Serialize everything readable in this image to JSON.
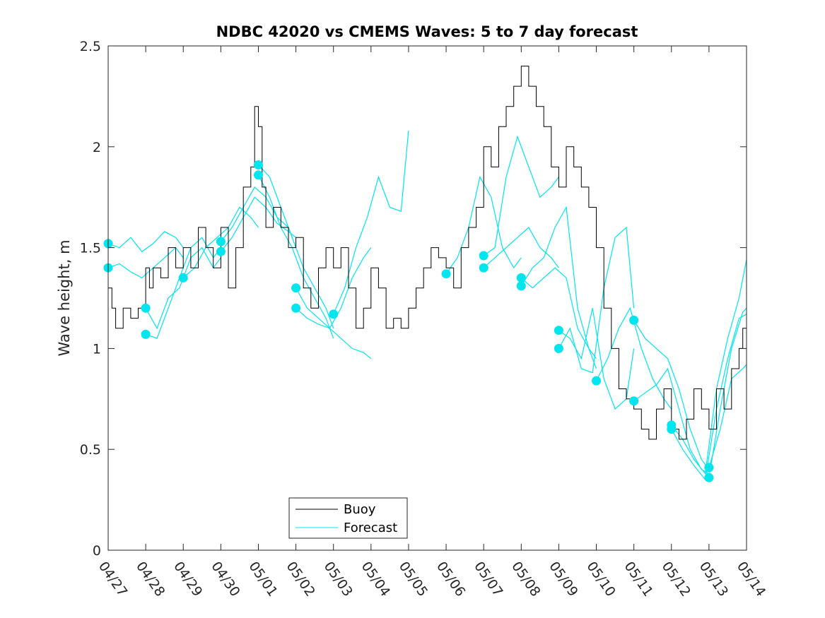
{
  "chart_data": {
    "type": "line",
    "title": "NDBC 42020 vs CMEMS Waves: 5 to 7 day forecast",
    "ylabel": "Wave height, m",
    "xlabel": "",
    "xlim": [
      0,
      17
    ],
    "ylim": [
      0,
      2.5
    ],
    "x_tick_labels": [
      "04/27",
      "04/28",
      "04/29",
      "04/30",
      "05/01",
      "05/02",
      "05/03",
      "05/04",
      "05/05",
      "05/06",
      "05/07",
      "05/08",
      "05/09",
      "05/10",
      "05/11",
      "05/12",
      "05/13",
      "05/14"
    ],
    "y_ticks": [
      0,
      0.5,
      1,
      1.5,
      2,
      2.5
    ],
    "y_tick_labels": [
      "0",
      "0.5",
      "1",
      "1.5",
      "2",
      "2.5"
    ],
    "grid": false,
    "legend_position": "bottom-center",
    "legend": [
      "Buoy",
      "Forecast"
    ],
    "colors": {
      "buoy": "#000000",
      "forecast": "#00e5ee"
    },
    "buoy": {
      "name": "Buoy",
      "x": [
        0,
        0.1,
        0.2,
        0.4,
        0.6,
        0.8,
        1.0,
        1.1,
        1.2,
        1.4,
        1.6,
        1.8,
        2.0,
        2.2,
        2.4,
        2.6,
        2.8,
        3.0,
        3.2,
        3.4,
        3.6,
        3.8,
        3.9,
        4.0,
        4.1,
        4.2,
        4.4,
        4.6,
        4.8,
        5.0,
        5.2,
        5.4,
        5.6,
        5.8,
        6.0,
        6.2,
        6.4,
        6.6,
        6.8,
        7.0,
        7.2,
        7.4,
        7.6,
        7.8,
        8.0,
        8.2,
        8.4,
        8.6,
        8.8,
        9.0,
        9.2,
        9.4,
        9.6,
        9.8,
        10.0,
        10.2,
        10.4,
        10.6,
        10.8,
        11.0,
        11.2,
        11.4,
        11.6,
        11.8,
        12.0,
        12.2,
        12.4,
        12.6,
        12.8,
        13.0,
        13.2,
        13.4,
        13.6,
        13.8,
        14.0,
        14.2,
        14.4,
        14.6,
        14.8,
        15.0,
        15.2,
        15.4,
        15.6,
        15.8,
        16.0,
        16.2,
        16.4,
        16.6,
        16.8,
        16.9,
        17.0
      ],
      "y": [
        1.3,
        1.2,
        1.1,
        1.2,
        1.15,
        1.2,
        1.4,
        1.3,
        1.4,
        1.35,
        1.5,
        1.4,
        1.5,
        1.4,
        1.6,
        1.5,
        1.4,
        1.6,
        1.3,
        1.5,
        1.8,
        1.9,
        2.2,
        2.1,
        1.8,
        1.6,
        1.7,
        1.6,
        1.5,
        1.55,
        1.3,
        1.2,
        1.4,
        1.5,
        1.4,
        1.5,
        1.3,
        1.1,
        1.2,
        1.4,
        1.3,
        1.1,
        1.15,
        1.1,
        1.2,
        1.3,
        1.4,
        1.5,
        1.45,
        1.4,
        1.3,
        1.5,
        1.6,
        1.7,
        2.0,
        1.9,
        2.1,
        2.2,
        2.3,
        2.4,
        2.3,
        2.2,
        2.1,
        1.9,
        1.8,
        2.0,
        1.9,
        1.8,
        1.7,
        1.5,
        1.2,
        1.0,
        0.8,
        0.75,
        0.7,
        0.6,
        0.55,
        0.7,
        0.8,
        0.6,
        0.55,
        0.65,
        0.8,
        0.7,
        0.6,
        0.8,
        0.7,
        0.9,
        1.0,
        1.1,
        1.2
      ]
    },
    "forecast": {
      "name": "Forecast",
      "segments": [
        {
          "x": [
            0,
            0.3,
            0.6,
            0.9,
            1.2,
            1.5,
            1.8,
            2.0
          ],
          "y": [
            1.52,
            1.5,
            1.55,
            1.48,
            1.52,
            1.58,
            1.55,
            1.5
          ]
        },
        {
          "x": [
            0,
            0.3,
            0.6,
            0.9,
            1.2,
            1.5,
            1.8,
            2.0
          ],
          "y": [
            1.4,
            1.42,
            1.38,
            1.35,
            1.4,
            1.45,
            1.5,
            1.45
          ]
        },
        {
          "x": [
            1,
            1.3,
            1.6,
            1.9,
            2.2,
            2.5,
            2.8,
            3.0
          ],
          "y": [
            1.2,
            1.1,
            1.25,
            1.3,
            1.45,
            1.5,
            1.4,
            1.45
          ]
        },
        {
          "x": [
            1,
            1.3,
            1.6,
            1.9,
            2.2,
            2.5,
            2.8,
            3.0
          ],
          "y": [
            1.07,
            1.05,
            1.2,
            1.35,
            1.5,
            1.55,
            1.45,
            1.5
          ]
        },
        {
          "x": [
            2,
            2.3,
            2.6,
            2.9,
            3.2,
            3.5,
            3.8,
            4.0
          ],
          "y": [
            1.35,
            1.4,
            1.5,
            1.55,
            1.6,
            1.7,
            1.65,
            1.6
          ]
        },
        {
          "x": [
            3,
            3.3,
            3.6,
            3.9,
            4.2,
            4.5,
            4.8,
            5.0
          ],
          "y": [
            1.48,
            1.55,
            1.65,
            1.75,
            1.7,
            1.62,
            1.58,
            1.55
          ]
        },
        {
          "x": [
            3,
            3.3,
            3.6,
            3.9,
            4.2,
            4.5,
            4.8,
            5.0
          ],
          "y": [
            1.53,
            1.6,
            1.7,
            1.8,
            1.75,
            1.65,
            1.6,
            1.5
          ]
        },
        {
          "x": [
            4,
            4.3,
            4.6,
            4.9,
            5.2,
            5.5,
            5.8,
            6.0
          ],
          "y": [
            1.91,
            1.85,
            1.7,
            1.55,
            1.4,
            1.3,
            1.2,
            1.1
          ]
        },
        {
          "x": [
            4,
            4.3,
            4.6,
            4.9,
            5.2,
            5.5,
            5.8,
            6.0
          ],
          "y": [
            1.86,
            1.75,
            1.6,
            1.5,
            1.35,
            1.25,
            1.15,
            1.05
          ]
        },
        {
          "x": [
            5,
            5.3,
            5.6,
            5.9,
            6.2,
            6.5,
            6.8,
            7.0
          ],
          "y": [
            1.3,
            1.2,
            1.15,
            1.1,
            1.05,
            1.0,
            0.98,
            0.95
          ]
        },
        {
          "x": [
            5,
            5.3,
            5.6,
            5.9,
            6.2,
            6.5,
            6.8,
            7.0
          ],
          "y": [
            1.2,
            1.15,
            1.12,
            1.1,
            1.2,
            1.35,
            1.45,
            1.5
          ]
        },
        {
          "x": [
            6,
            6.3,
            6.6,
            6.9,
            7.2,
            7.5,
            7.8,
            8.0
          ],
          "y": [
            1.17,
            1.3,
            1.5,
            1.65,
            1.85,
            1.7,
            1.68,
            2.08
          ]
        },
        {
          "x": [
            9,
            9.3,
            9.6,
            9.9,
            10.2,
            10.5,
            10.8,
            11.0
          ],
          "y": [
            1.37,
            1.45,
            1.6,
            1.85,
            1.75,
            1.5,
            1.4,
            1.45
          ]
        },
        {
          "x": [
            10,
            10.3,
            10.6,
            10.9,
            11.2,
            11.5,
            11.8,
            12.0
          ],
          "y": [
            1.46,
            1.5,
            1.85,
            2.05,
            1.9,
            1.75,
            1.8,
            1.85
          ]
        },
        {
          "x": [
            10,
            10.3,
            10.6,
            10.9,
            11.2,
            11.5,
            11.8,
            12.0
          ],
          "y": [
            1.4,
            1.45,
            1.5,
            1.55,
            1.6,
            1.5,
            1.45,
            1.4
          ]
        },
        {
          "x": [
            11,
            11.3,
            11.6,
            11.9,
            12.2,
            12.5,
            12.8,
            13.0
          ],
          "y": [
            1.35,
            1.3,
            1.35,
            1.4,
            1.35,
            1.1,
            1.0,
            0.95
          ]
        },
        {
          "x": [
            11,
            11.3,
            11.6,
            11.9,
            12.2,
            12.5,
            12.8,
            13.0
          ],
          "y": [
            1.31,
            1.4,
            1.45,
            1.6,
            1.7,
            1.2,
            1.0,
            0.9
          ]
        },
        {
          "x": [
            12,
            12.3,
            12.6,
            12.9,
            13.2,
            13.5,
            13.8,
            14.0
          ],
          "y": [
            1.09,
            1.05,
            0.95,
            1.2,
            0.85,
            0.7,
            0.75,
            1.0
          ]
        },
        {
          "x": [
            12,
            12.3,
            12.6,
            12.9,
            13.2,
            13.5,
            13.8,
            14.0
          ],
          "y": [
            1.0,
            1.1,
            0.9,
            0.88,
            1.3,
            1.55,
            1.6,
            1.2
          ]
        },
        {
          "x": [
            13,
            13.3,
            13.6,
            13.9,
            14.2,
            14.5,
            14.8,
            15.0
          ],
          "y": [
            0.84,
            0.95,
            1.1,
            1.2,
            1.0,
            0.85,
            0.75,
            0.7
          ]
        },
        {
          "x": [
            14,
            14.3,
            14.6,
            14.9,
            15.2,
            15.5,
            15.8,
            16.0
          ],
          "y": [
            1.14,
            1.05,
            1.0,
            0.95,
            0.8,
            0.6,
            0.45,
            0.4
          ]
        },
        {
          "x": [
            14,
            14.3,
            14.6,
            14.9,
            15.2,
            15.5,
            15.8,
            16.0
          ],
          "y": [
            0.74,
            0.78,
            0.82,
            0.9,
            0.7,
            0.5,
            0.4,
            0.38
          ]
        },
        {
          "x": [
            15,
            15.3,
            15.6,
            15.9,
            16.2,
            16.5,
            16.8,
            17.0
          ],
          "y": [
            0.62,
            0.55,
            0.45,
            0.38,
            0.8,
            1.05,
            1.25,
            1.44
          ]
        },
        {
          "x": [
            15,
            15.3,
            15.6,
            15.9,
            16.2,
            16.5,
            16.8,
            17.0
          ],
          "y": [
            0.6,
            0.5,
            0.42,
            0.35,
            0.7,
            0.95,
            1.15,
            1.17
          ]
        },
        {
          "x": [
            16,
            16.3,
            16.6,
            16.9,
            17.0
          ],
          "y": [
            0.41,
            0.6,
            0.85,
            0.9,
            0.92
          ]
        },
        {
          "x": [
            16,
            16.3,
            16.6,
            16.9,
            17.0
          ],
          "y": [
            0.36,
            0.7,
            1.0,
            1.18,
            1.2
          ]
        }
      ],
      "start_markers": {
        "x": [
          0,
          0,
          1,
          1,
          2,
          3,
          3,
          4,
          4,
          5,
          5,
          6,
          9,
          10,
          10,
          11,
          11,
          12,
          12,
          13,
          14,
          14,
          15,
          15,
          16,
          16
        ],
        "y": [
          1.52,
          1.4,
          1.2,
          1.07,
          1.35,
          1.48,
          1.53,
          1.91,
          1.86,
          1.3,
          1.2,
          1.17,
          1.37,
          1.46,
          1.4,
          1.35,
          1.31,
          1.09,
          1.0,
          0.84,
          1.14,
          0.74,
          0.62,
          0.6,
          0.41,
          0.36
        ]
      }
    }
  }
}
